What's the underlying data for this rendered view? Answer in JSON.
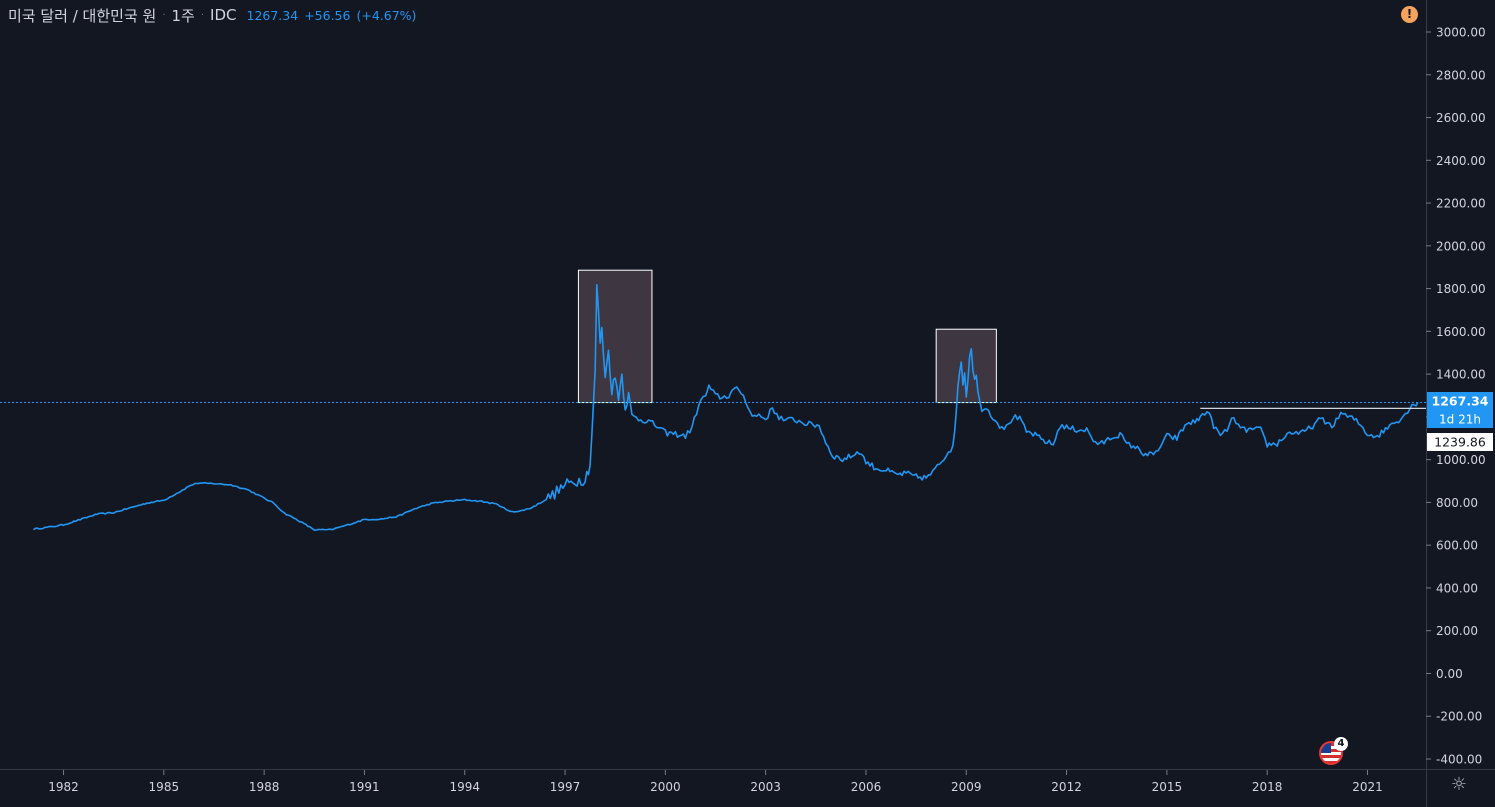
{
  "header": {
    "pair": "미국 달러 / 대한민국 원",
    "interval": "1주",
    "source": "IDC",
    "last": "1267.34",
    "change": "+56.56",
    "change_pct": "(+4.67%)"
  },
  "price_labels": {
    "last": "1267.34",
    "countdown": "1d 21h",
    "marker": "1239.86"
  },
  "events_badge": {
    "count": "4"
  },
  "alert_glyph": "!",
  "settings_glyph": "☼",
  "colors": {
    "background": "#131722",
    "line": "#2196f3",
    "text": "#d1d4dc",
    "alert": "#f7a35c",
    "box_fill": "#463c46",
    "box_border": "#ffffff"
  },
  "chart_data": {
    "type": "line",
    "title": "",
    "xlabel": "",
    "ylabel": "",
    "grid": false,
    "ylim": [
      -400,
      3000
    ],
    "xlim": [
      1980.1,
      2022.75
    ],
    "y_ticks": [
      3000,
      2800,
      2600,
      2400,
      2200,
      2000,
      1800,
      1600,
      1400,
      1200,
      1000,
      800,
      600,
      400,
      200,
      0,
      -200,
      -400
    ],
    "y_tick_labels": [
      "3000.00",
      "2800.00",
      "2600.00",
      "2400.00",
      "2200.00",
      "2000.00",
      "1800.00",
      "1600.00",
      "1400.00",
      "1200.00",
      "1000.00",
      "800.00",
      "600.00",
      "400.00",
      "200.00",
      "0.00",
      "-200.00",
      "-400.00"
    ],
    "x_ticks": [
      1982,
      1985,
      1988,
      1991,
      1994,
      1997,
      2000,
      2003,
      2006,
      2009,
      2012,
      2015,
      2018,
      2021
    ],
    "x_tick_labels": [
      "1982",
      "1985",
      "1988",
      "1991",
      "1994",
      "1997",
      "2000",
      "2003",
      "2006",
      "2009",
      "2012",
      "2015",
      "2018",
      "2021"
    ],
    "last_price_line": 1267.34,
    "marker_line": {
      "y": 1239.86,
      "x_start": 2016.0,
      "x_end": 2022.75
    },
    "highlight_boxes": [
      {
        "x0": 1997.4,
        "x1": 1999.6,
        "y0": 1267,
        "y1": 1886
      },
      {
        "x0": 2008.1,
        "x1": 2009.9,
        "y0": 1267,
        "y1": 1610
      }
    ],
    "series": [
      {
        "points": [
          [
            1981.1,
            675
          ],
          [
            1981.5,
            683
          ],
          [
            1982.0,
            695
          ],
          [
            1982.5,
            720
          ],
          [
            1983.0,
            745
          ],
          [
            1983.5,
            752
          ],
          [
            1984.0,
            775
          ],
          [
            1984.5,
            797
          ],
          [
            1985.0,
            810
          ],
          [
            1985.5,
            852
          ],
          [
            1985.8,
            880
          ],
          [
            1986.0,
            890
          ],
          [
            1986.5,
            888
          ],
          [
            1987.0,
            882
          ],
          [
            1987.5,
            860
          ],
          [
            1988.0,
            820
          ],
          [
            1988.3,
            795
          ],
          [
            1988.6,
            750
          ],
          [
            1989.0,
            718
          ],
          [
            1989.5,
            672
          ],
          [
            1990.0,
            672
          ],
          [
            1990.5,
            695
          ],
          [
            1991.0,
            720
          ],
          [
            1991.5,
            722
          ],
          [
            1992.0,
            735
          ],
          [
            1992.5,
            770
          ],
          [
            1993.0,
            795
          ],
          [
            1993.5,
            806
          ],
          [
            1994.0,
            812
          ],
          [
            1994.5,
            805
          ],
          [
            1995.0,
            790
          ],
          [
            1995.3,
            760
          ],
          [
            1995.6,
            757
          ],
          [
            1996.0,
            775
          ],
          [
            1996.5,
            820
          ],
          [
            1997.0,
            880
          ],
          [
            1997.3,
            900
          ],
          [
            1997.6,
            910
          ],
          [
            1997.75,
            980
          ],
          [
            1997.85,
            1250
          ],
          [
            1997.9,
            1420
          ],
          [
            1997.95,
            1800
          ],
          [
            1998.0,
            1700
          ],
          [
            1998.05,
            1550
          ],
          [
            1998.1,
            1600
          ],
          [
            1998.2,
            1400
          ],
          [
            1998.3,
            1500
          ],
          [
            1998.4,
            1330
          ],
          [
            1998.5,
            1380
          ],
          [
            1998.6,
            1300
          ],
          [
            1998.7,
            1395
          ],
          [
            1998.8,
            1250
          ],
          [
            1998.9,
            1300
          ],
          [
            1999.0,
            1200
          ],
          [
            1999.2,
            1190
          ],
          [
            1999.5,
            1180
          ],
          [
            1999.8,
            1150
          ],
          [
            2000.0,
            1125
          ],
          [
            2000.3,
            1120
          ],
          [
            2000.6,
            1110
          ],
          [
            2000.8,
            1150
          ],
          [
            2001.0,
            1260
          ],
          [
            2001.2,
            1300
          ],
          [
            2001.3,
            1340
          ],
          [
            2001.5,
            1300
          ],
          [
            2001.7,
            1290
          ],
          [
            2001.9,
            1300
          ],
          [
            2002.0,
            1320
          ],
          [
            2002.2,
            1330
          ],
          [
            2002.4,
            1280
          ],
          [
            2002.6,
            1200
          ],
          [
            2002.8,
            1210
          ],
          [
            2003.0,
            1190
          ],
          [
            2003.2,
            1240
          ],
          [
            2003.4,
            1200
          ],
          [
            2003.6,
            1180
          ],
          [
            2003.8,
            1190
          ],
          [
            2004.0,
            1180
          ],
          [
            2004.3,
            1165
          ],
          [
            2004.6,
            1160
          ],
          [
            2004.8,
            1080
          ],
          [
            2005.0,
            1020
          ],
          [
            2005.3,
            1000
          ],
          [
            2005.6,
            1020
          ],
          [
            2005.8,
            1040
          ],
          [
            2006.0,
            990
          ],
          [
            2006.3,
            960
          ],
          [
            2006.6,
            950
          ],
          [
            2006.9,
            930
          ],
          [
            2007.2,
            935
          ],
          [
            2007.5,
            920
          ],
          [
            2007.8,
            915
          ],
          [
            2008.0,
            940
          ],
          [
            2008.2,
            980
          ],
          [
            2008.4,
            1020
          ],
          [
            2008.6,
            1080
          ],
          [
            2008.7,
            1230
          ],
          [
            2008.8,
            1400
          ],
          [
            2008.85,
            1480
          ],
          [
            2008.9,
            1350
          ],
          [
            2008.95,
            1420
          ],
          [
            2009.0,
            1300
          ],
          [
            2009.1,
            1480
          ],
          [
            2009.15,
            1540
          ],
          [
            2009.2,
            1420
          ],
          [
            2009.3,
            1380
          ],
          [
            2009.4,
            1260
          ],
          [
            2009.6,
            1240
          ],
          [
            2009.8,
            1200
          ],
          [
            2010.0,
            1160
          ],
          [
            2010.2,
            1150
          ],
          [
            2010.4,
            1200
          ],
          [
            2010.6,
            1190
          ],
          [
            2010.8,
            1130
          ],
          [
            2011.0,
            1120
          ],
          [
            2011.3,
            1090
          ],
          [
            2011.6,
            1070
          ],
          [
            2011.8,
            1160
          ],
          [
            2012.0,
            1150
          ],
          [
            2012.3,
            1140
          ],
          [
            2012.6,
            1140
          ],
          [
            2012.8,
            1090
          ],
          [
            2013.0,
            1070
          ],
          [
            2013.3,
            1100
          ],
          [
            2013.6,
            1120
          ],
          [
            2013.8,
            1070
          ],
          [
            2014.0,
            1065
          ],
          [
            2014.3,
            1030
          ],
          [
            2014.6,
            1020
          ],
          [
            2014.8,
            1060
          ],
          [
            2015.0,
            1110
          ],
          [
            2015.3,
            1100
          ],
          [
            2015.6,
            1170
          ],
          [
            2015.9,
            1180
          ],
          [
            2016.0,
            1200
          ],
          [
            2016.2,
            1230
          ],
          [
            2016.4,
            1160
          ],
          [
            2016.6,
            1110
          ],
          [
            2016.8,
            1140
          ],
          [
            2017.0,
            1200
          ],
          [
            2017.2,
            1140
          ],
          [
            2017.5,
            1140
          ],
          [
            2017.8,
            1140
          ],
          [
            2018.0,
            1070
          ],
          [
            2018.3,
            1075
          ],
          [
            2018.6,
            1120
          ],
          [
            2018.8,
            1130
          ],
          [
            2019.0,
            1120
          ],
          [
            2019.3,
            1150
          ],
          [
            2019.6,
            1190
          ],
          [
            2019.8,
            1170
          ],
          [
            2020.0,
            1160
          ],
          [
            2020.2,
            1220
          ],
          [
            2020.4,
            1200
          ],
          [
            2020.6,
            1190
          ],
          [
            2020.8,
            1160
          ],
          [
            2021.0,
            1120
          ],
          [
            2021.3,
            1110
          ],
          [
            2021.6,
            1150
          ],
          [
            2021.8,
            1180
          ],
          [
            2022.0,
            1190
          ],
          [
            2022.2,
            1230
          ],
          [
            2022.4,
            1260
          ],
          [
            2022.5,
            1267.34
          ]
        ]
      }
    ]
  }
}
